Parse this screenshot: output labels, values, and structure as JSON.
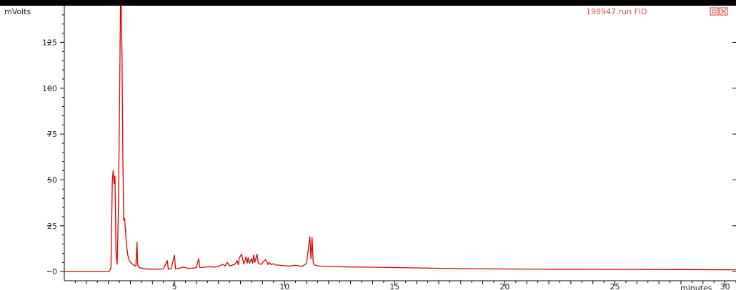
{
  "window": {
    "trace_label": "198947.run FID",
    "window_controls": [
      "restore",
      "close"
    ]
  },
  "colors": {
    "trace": "#d40000",
    "axis": "#000000",
    "label": "#d9534f",
    "top_bar": "#050505"
  },
  "chart_data": {
    "type": "line",
    "title": "198947.run FID",
    "xlabel": "minutes",
    "ylabel": "mVolts",
    "xlim": [
      0,
      30.5
    ],
    "ylim": [
      -5,
      145
    ],
    "y_ticks": [
      0,
      25,
      50,
      75,
      100,
      125
    ],
    "x_ticks": [
      5,
      10,
      15,
      20,
      25,
      30
    ],
    "grid": false,
    "series": [
      {
        "name": "198947.run FID",
        "x": [
          0,
          1,
          2,
          2.05,
          2.12,
          2.18,
          2.22,
          2.26,
          2.3,
          2.35,
          2.4,
          2.45,
          2.5,
          2.55,
          2.58,
          2.62,
          2.66,
          2.7,
          2.74,
          2.78,
          2.82,
          2.88,
          2.95,
          3.05,
          3.15,
          3.25,
          3.3,
          3.33,
          3.37,
          3.45,
          3.7,
          4.0,
          4.5,
          4.68,
          4.72,
          4.76,
          4.85,
          5.0,
          5.05,
          5.1,
          5.2,
          5.4,
          5.6,
          5.8,
          6.0,
          6.1,
          6.15,
          6.2,
          6.35,
          6.6,
          6.8,
          7.0,
          7.2,
          7.3,
          7.4,
          7.5,
          7.6,
          7.75,
          7.85,
          7.9,
          7.95,
          8.05,
          8.15,
          8.25,
          8.3,
          8.35,
          8.4,
          8.5,
          8.55,
          8.6,
          8.65,
          8.75,
          8.8,
          8.85,
          8.95,
          9.05,
          9.15,
          9.25,
          9.3,
          9.4,
          9.5,
          9.6,
          9.75,
          9.9,
          10.0,
          10.2,
          10.5,
          10.8,
          11.0,
          11.15,
          11.2,
          11.25,
          11.3,
          11.35,
          11.45,
          11.6,
          12.0,
          12.5,
          13,
          14,
          15,
          16,
          17,
          18,
          20,
          22,
          25,
          28,
          30.5
        ],
        "y": [
          0,
          0,
          0,
          0.3,
          2,
          50,
          55,
          48,
          52,
          10,
          4,
          30,
          80,
          145,
          145,
          120,
          60,
          28,
          29,
          22,
          15,
          9,
          6,
          4.5,
          3.5,
          3,
          16,
          4,
          2.5,
          2,
          1.5,
          1.3,
          1.4,
          6,
          1.2,
          1.4,
          1.4,
          9,
          1.5,
          1.6,
          1.7,
          2.5,
          1.8,
          1.8,
          2.2,
          7,
          2.4,
          2.2,
          2.4,
          2.6,
          2.4,
          2.8,
          4,
          3,
          5,
          3.2,
          3.4,
          4,
          6,
          3.8,
          7.5,
          9.5,
          4,
          8,
          4.5,
          7.5,
          4.5,
          7,
          4.5,
          9,
          5,
          9.5,
          5,
          4.2,
          4,
          5.5,
          6.5,
          3.8,
          5,
          3.8,
          4.3,
          3.6,
          3.5,
          3.3,
          3.2,
          3.0,
          3.4,
          2.8,
          4.5,
          19,
          7,
          18.5,
          5,
          3.8,
          3.2,
          3.0,
          2.8,
          2.6,
          2.5,
          2.4,
          2.2,
          2.0,
          1.8,
          1.6,
          1.4,
          1.3,
          1.2,
          1.1,
          1.0
        ]
      }
    ]
  }
}
